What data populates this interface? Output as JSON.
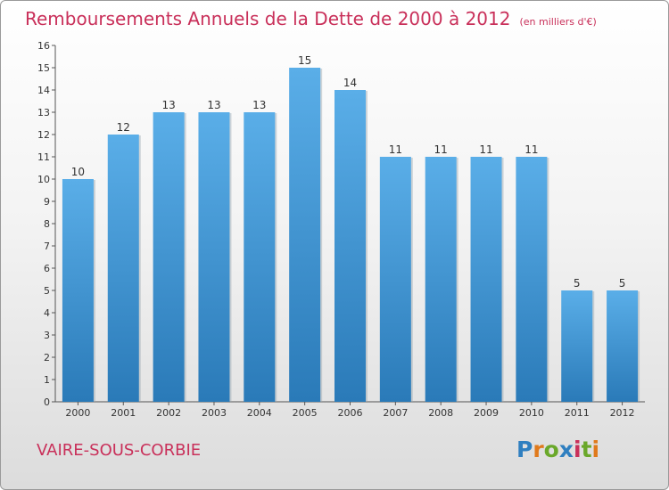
{
  "page": {
    "title": "Remboursements Annuels de la Dette de 2000 à 2012",
    "subtitle": "(en milliers d'€)",
    "commune": "VAIRE-SOUS-CORBIE",
    "logo_text": "Proxiti",
    "logo_letters": [
      {
        "ch": "P",
        "color": "#2f7fc0"
      },
      {
        "ch": "r",
        "color": "#e07a1c"
      },
      {
        "ch": "o",
        "color": "#6aa82a"
      },
      {
        "ch": "x",
        "color": "#2f7fc0"
      },
      {
        "ch": "i",
        "color": "#c9305a"
      },
      {
        "ch": "t",
        "color": "#6aa82a"
      },
      {
        "ch": "i",
        "color": "#e07a1c"
      }
    ],
    "colors": {
      "title": "#c9305a",
      "bar_top": "#5aaee8",
      "bar_bottom": "#2a7ab8",
      "axis": "#555555",
      "text": "#333333"
    }
  },
  "chart_data": {
    "type": "bar",
    "categories": [
      "2000",
      "2001",
      "2002",
      "2003",
      "2004",
      "2005",
      "2006",
      "2007",
      "2008",
      "2009",
      "2010",
      "2011",
      "2012"
    ],
    "values": [
      10,
      12,
      13,
      13,
      13,
      15,
      14,
      11,
      11,
      11,
      11,
      5,
      5
    ],
    "data_labels": [
      "10",
      "12",
      "13",
      "13",
      "13",
      "15",
      "14",
      "11",
      "11",
      "11",
      "11",
      "5",
      "5"
    ],
    "ylim": [
      0,
      16
    ],
    "yticks": [
      0,
      1,
      2,
      3,
      4,
      5,
      6,
      7,
      8,
      9,
      10,
      11,
      12,
      13,
      14,
      15,
      16
    ],
    "xlabel": "",
    "ylabel": "",
    "grid": false,
    "legend": "none"
  }
}
